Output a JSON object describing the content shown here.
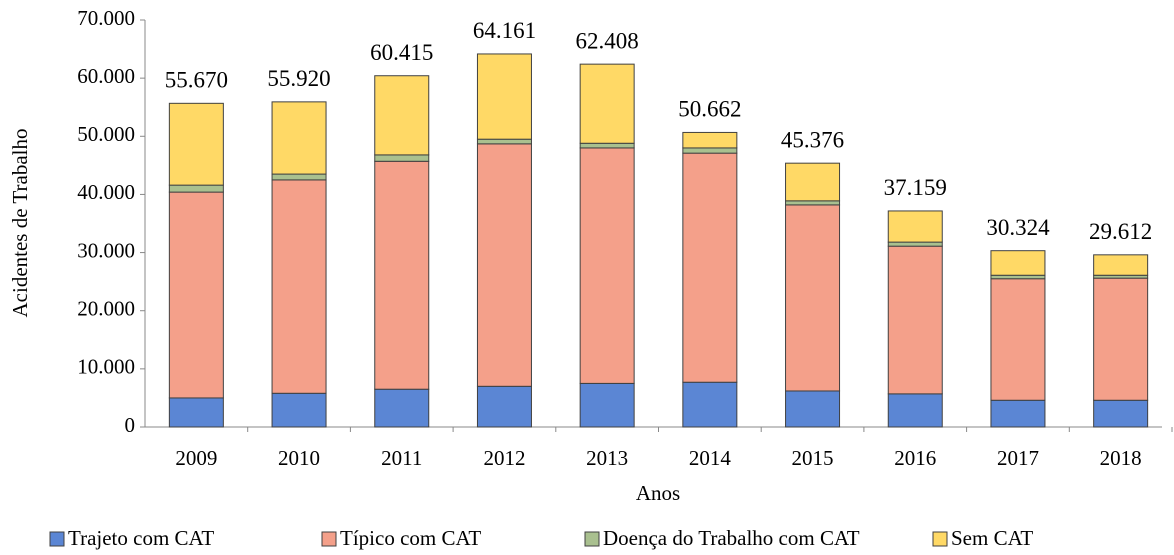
{
  "chart_data": {
    "type": "bar",
    "stacked": true,
    "y_label": "Acidentes de Trabalho",
    "x_label": "Anos",
    "categories": [
      "2009",
      "2010",
      "2011",
      "2012",
      "2013",
      "2014",
      "2015",
      "2016",
      "2017",
      "2018"
    ],
    "series": [
      {
        "name": "Trajeto com CAT",
        "color": "#5b86d4",
        "values": [
          5000,
          5800,
          6500,
          7000,
          7500,
          7700,
          6200,
          5700,
          4600,
          4600
        ]
      },
      {
        "name": "Típico com CAT",
        "color": "#f4a08a",
        "values": [
          35400,
          36700,
          39200,
          41700,
          40500,
          39400,
          32000,
          25400,
          20900,
          21000
        ]
      },
      {
        "name": "Doença do Trabalho com CAT",
        "color": "#a9c08f",
        "values": [
          1200,
          1000,
          1100,
          800,
          800,
          900,
          700,
          700,
          600,
          500
        ]
      },
      {
        "name": "Sem CAT",
        "color": "#ffd966",
        "values": [
          14070,
          12420,
          13615,
          14661,
          13608,
          2662,
          6476,
          5359,
          4224,
          3512
        ]
      }
    ],
    "totals": {
      "values": [
        55670,
        55920,
        60415,
        64161,
        62408,
        50662,
        45376,
        37159,
        30324,
        29612
      ],
      "value_labels": [
        "55.670",
        "55.920",
        "60.415",
        "64.161",
        "62.408",
        "50.662",
        "45.376",
        "37.159",
        "30.324",
        "29.612"
      ]
    },
    "ylim": [
      0,
      70000
    ],
    "yticks": [
      0,
      {
        "value": 10000,
        "label": "10.000"
      },
      {
        "value": 20000,
        "label": "20.000"
      },
      {
        "value": 30000,
        "label": "30.000"
      },
      {
        "value": 40000,
        "label": "40.000"
      },
      {
        "value": 50000,
        "label": "50.000"
      },
      {
        "value": 60000,
        "label": "60.000"
      },
      {
        "value": 70000,
        "label": "70.000"
      }
    ],
    "grid": false,
    "legend": "bottom"
  }
}
